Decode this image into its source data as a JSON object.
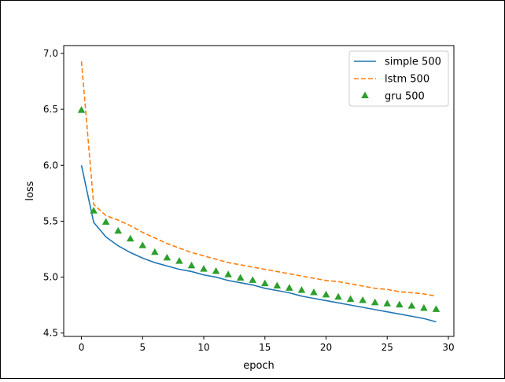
{
  "chart_data": {
    "type": "line",
    "title": "",
    "xlabel": "epoch",
    "ylabel": "loss",
    "xlim": [
      -1.45,
      30.45
    ],
    "ylim": [
      4.47,
      7.07
    ],
    "xticks": [
      0,
      5,
      10,
      15,
      20,
      25,
      30
    ],
    "xtick_labels": [
      "0",
      "5",
      "10",
      "15",
      "20",
      "25",
      "30"
    ],
    "yticks": [
      4.5,
      5.0,
      5.5,
      6.0,
      6.5,
      7.0
    ],
    "ytick_labels": [
      "4.5",
      "5.0",
      "5.5",
      "6.0",
      "6.5",
      "7.0"
    ],
    "grid": false,
    "legend_position": "top-right",
    "x": [
      0,
      1,
      2,
      3,
      4,
      5,
      6,
      7,
      8,
      9,
      10,
      11,
      12,
      13,
      14,
      15,
      16,
      17,
      18,
      19,
      20,
      21,
      22,
      23,
      24,
      25,
      26,
      27,
      28,
      29
    ],
    "series": [
      {
        "name": "simple 500",
        "style": "solid-line",
        "color": "#1f77b4",
        "values": [
          6.0,
          5.49,
          5.36,
          5.28,
          5.22,
          5.17,
          5.13,
          5.1,
          5.07,
          5.05,
          5.02,
          5.0,
          4.97,
          4.95,
          4.93,
          4.9,
          4.88,
          4.86,
          4.83,
          4.81,
          4.79,
          4.77,
          4.75,
          4.73,
          4.71,
          4.69,
          4.67,
          4.65,
          4.63,
          4.6
        ]
      },
      {
        "name": "lstm 500",
        "style": "dashed-line",
        "color": "#ff7f0e",
        "values": [
          6.93,
          5.65,
          5.55,
          5.51,
          5.46,
          5.4,
          5.35,
          5.3,
          5.26,
          5.22,
          5.19,
          5.16,
          5.13,
          5.11,
          5.09,
          5.07,
          5.05,
          5.03,
          5.01,
          4.99,
          4.97,
          4.96,
          4.94,
          4.92,
          4.9,
          4.89,
          4.87,
          4.86,
          4.85,
          4.83
        ]
      },
      {
        "name": "gru 500",
        "style": "triangle-markers",
        "color": "#2ca02c",
        "values": [
          6.49,
          5.59,
          5.49,
          5.41,
          5.34,
          5.28,
          5.22,
          5.17,
          5.14,
          5.1,
          5.07,
          5.05,
          5.02,
          4.99,
          4.97,
          4.94,
          4.92,
          4.9,
          4.88,
          4.86,
          4.84,
          4.82,
          4.8,
          4.79,
          4.77,
          4.76,
          4.75,
          4.74,
          4.72,
          4.71
        ]
      }
    ]
  }
}
